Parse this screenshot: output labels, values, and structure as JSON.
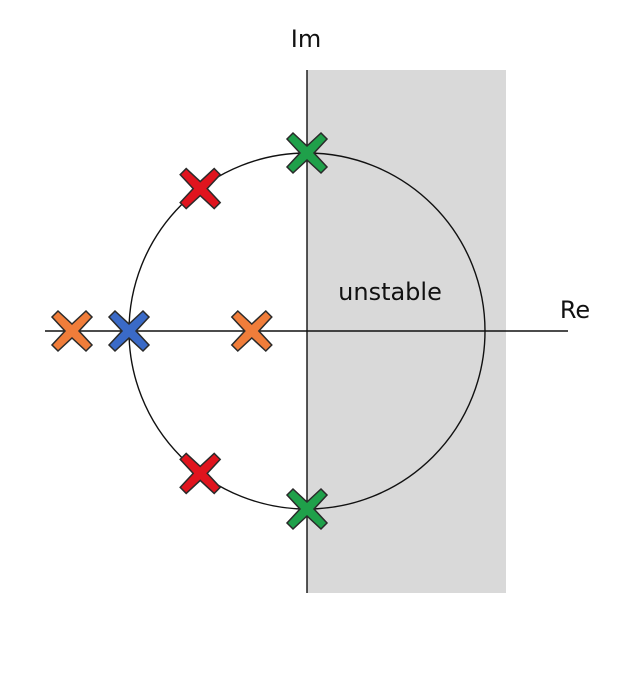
{
  "axes": {
    "imaginary_label": "Im",
    "real_label": "Re"
  },
  "regions": {
    "unstable_label": "unstable",
    "unstable_fill": "#d9d9d9"
  },
  "unit_circle": {
    "stroke": "#111111"
  },
  "pole_markers": [
    {
      "name": "pole-green-top",
      "color": "#1fa04a",
      "re": 0.0,
      "im": 1.0
    },
    {
      "name": "pole-green-bottom",
      "color": "#1fa04a",
      "re": 0.0,
      "im": -1.0
    },
    {
      "name": "pole-red-upper",
      "color": "#e0141e",
      "re": -0.6,
      "im": 0.8
    },
    {
      "name": "pole-red-lower",
      "color": "#e0141e",
      "re": -0.6,
      "im": -0.8
    },
    {
      "name": "pole-blue-left",
      "color": "#3a6ac7",
      "re": -1.0,
      "im": 0.0
    },
    {
      "name": "pole-orange-outer",
      "color": "#f07d3a",
      "re": -1.32,
      "im": 0.0
    },
    {
      "name": "pole-orange-inner",
      "color": "#f07d3a",
      "re": -0.31,
      "im": 0.0
    }
  ]
}
